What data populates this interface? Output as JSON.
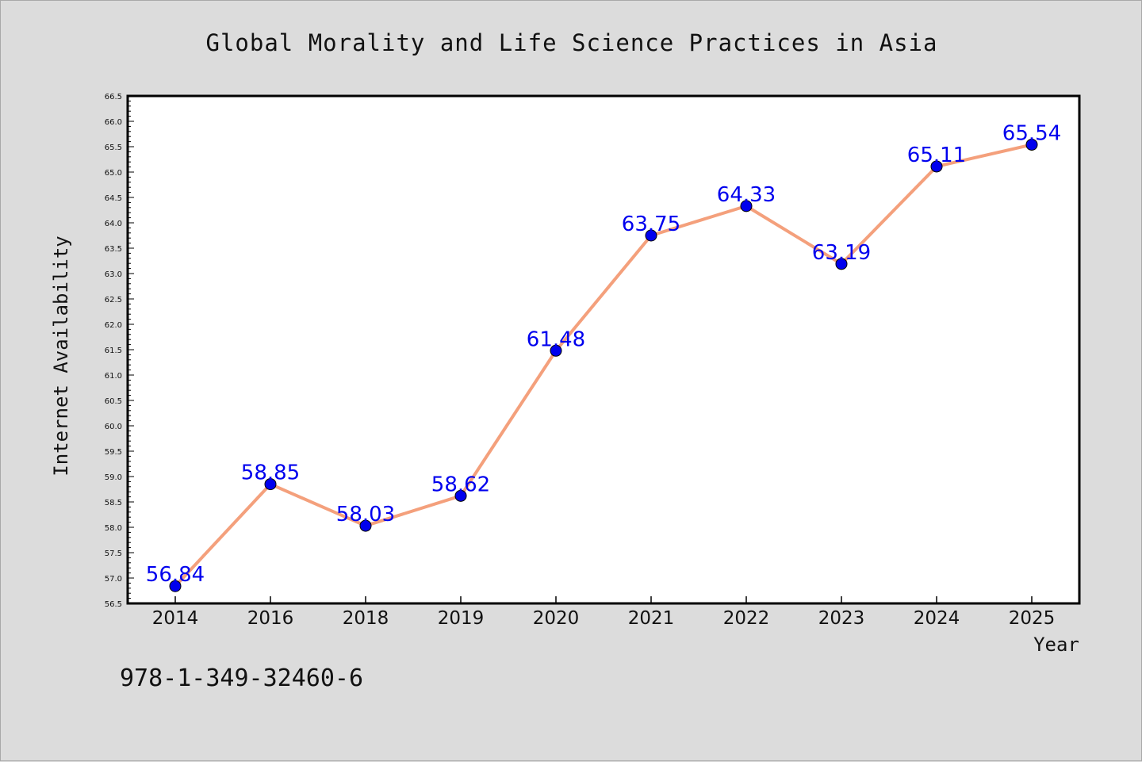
{
  "chart_data": {
    "type": "line",
    "title": "Global Morality and Life Science Practices in Asia",
    "xlabel": "Year",
    "ylabel": "Internet Availability",
    "categories": [
      "2014",
      "2016",
      "2018",
      "2019",
      "2020",
      "2021",
      "2022",
      "2023",
      "2024",
      "2025"
    ],
    "series": [
      {
        "values": [
          56.84,
          58.85,
          58.03,
          58.62,
          61.48,
          63.75,
          64.33,
          63.19,
          65.11,
          65.54
        ],
        "labels": [
          "56.84",
          "58.85",
          "58.03",
          "58.62",
          "61.48",
          "63.75",
          "64.33",
          "63.19",
          "65.11",
          "65.54"
        ],
        "line_color": "#f4a07c",
        "marker_color": "#0000ee"
      }
    ],
    "ylim": [
      56.5,
      66.5
    ],
    "yticks": [
      "56.5",
      "57.0",
      "57.5",
      "58.0",
      "58.5",
      "59.0",
      "59.5",
      "60.0",
      "60.5",
      "61.0",
      "61.5",
      "62.0",
      "62.5",
      "63.0",
      "63.5",
      "64.0",
      "64.5",
      "65.0",
      "65.5",
      "66.0",
      "66.5"
    ],
    "grid": false,
    "legend": "none"
  },
  "footnote": "978-1-349-32460-6"
}
